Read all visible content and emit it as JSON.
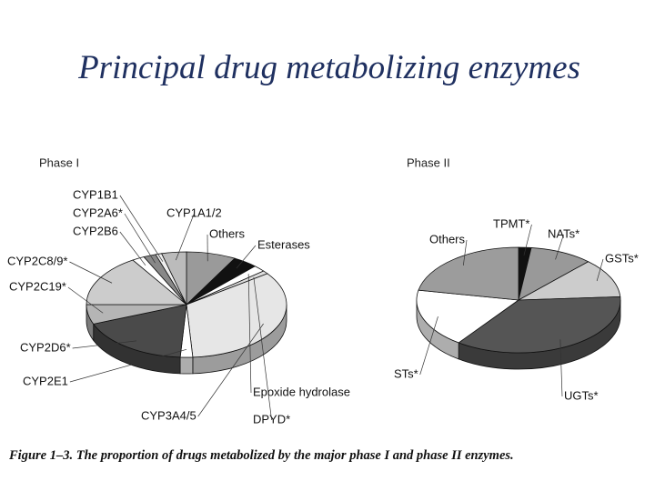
{
  "title": "Principal drug metabolizing enzymes",
  "caption": "Figure 1–3. The proportion of drugs metabolized by the major phase I and phase II enzymes.",
  "chart_data": [
    {
      "type": "pie",
      "title": "Phase I",
      "categories": [
        "Others",
        "Esterases",
        "Epoxide hydrolase",
        "DPYD*",
        "CYP3A4/5",
        "CYP2E1",
        "CYP2D6*",
        "CYP2C19*",
        "CYP2C8/9*",
        "CYP2B6",
        "CYP2A6*",
        "CYP1B1",
        "CYP1A1/2"
      ],
      "values": [
        8,
        4,
        2,
        1,
        34,
        2,
        18,
        6,
        16,
        2,
        2,
        1,
        4
      ],
      "colors": [
        "#9a9a9a",
        "#111111",
        "#ffffff",
        "#dddddd",
        "#e6e6e6",
        "#ffffff",
        "#4a4a4a",
        "#b5b5b5",
        "#cccccc",
        "#ffffff",
        "#888888",
        "#eeeeee",
        "#bbbbbb"
      ]
    },
    {
      "type": "pie",
      "title": "Phase II",
      "categories": [
        "TPMT*",
        "NATs*",
        "GSTs*",
        "UGTs*",
        "STs*",
        "Others"
      ],
      "values": [
        2,
        10,
        12,
        36,
        18,
        22
      ],
      "colors": [
        "#111111",
        "#999999",
        "#cccccc",
        "#555555",
        "#ffffff",
        "#9c9c9c"
      ]
    }
  ]
}
